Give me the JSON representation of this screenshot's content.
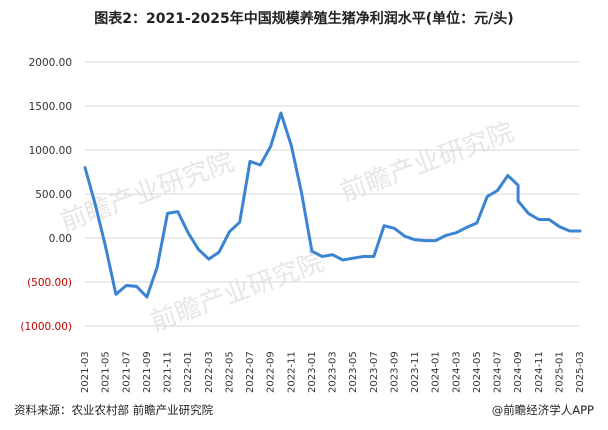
{
  "title": "图表2：2021-2025年中国规模养殖生猪净利润水平(单位：元/头)",
  "footer": {
    "source": "资料来源：农业农村部 前瞻产业研究院",
    "brand": "@前瞻经济学人APP"
  },
  "watermark": "前瞻产业研究院",
  "colors": {
    "line": "#3a84d1",
    "grid": "#d9d9d9",
    "negative_label": "#c00000"
  },
  "chart_data": {
    "type": "line",
    "title": "图表2：2021-2025年中国规模养殖生猪净利润水平(单位：元/头)",
    "xlabel": "",
    "ylabel": "",
    "ylim": [
      -1000,
      2000
    ],
    "yticks": [
      2000,
      1500,
      1000,
      500,
      0,
      -500,
      -1000
    ],
    "ytick_labels": [
      "2000.00",
      "1500.00",
      "1000.00",
      "500.00",
      "0.00",
      "(500.00)",
      "(1000.00)"
    ],
    "xtick_labels": [
      "2021-03",
      "2021-05",
      "2021-07",
      "2021-09",
      "2021-11",
      "2022-01",
      "2022-03",
      "2022-05",
      "2022-07",
      "2022-09",
      "2022-11",
      "2023-01",
      "2023-03",
      "2023-05",
      "2023-07",
      "2023-09",
      "2023-11",
      "2024-01",
      "2024-03",
      "2024-05",
      "2024-07",
      "2024-09",
      "2024-11",
      "2025-01",
      "2025-03"
    ],
    "grid": true,
    "series": [
      {
        "points": [
          [
            "2021-03",
            800
          ],
          [
            "2021-04",
            380
          ],
          [
            "2021-05",
            -100
          ],
          [
            "2021-06",
            -640
          ],
          [
            "2021-07",
            -540
          ],
          [
            "2021-08",
            -550
          ],
          [
            "2021-09",
            -670
          ],
          [
            "2021-10",
            -330
          ],
          [
            "2021-11",
            280
          ],
          [
            "2021-12",
            300
          ],
          [
            "2022-01",
            60
          ],
          [
            "2022-02",
            -130
          ],
          [
            "2022-03",
            -240
          ],
          [
            "2022-04",
            -160
          ],
          [
            "2022-05",
            70
          ],
          [
            "2022-06",
            180
          ],
          [
            "2022-07",
            870
          ],
          [
            "2022-08",
            830
          ],
          [
            "2022-09",
            1040
          ],
          [
            "2022-10",
            1420
          ],
          [
            "2022-11",
            1050
          ],
          [
            "2022-12",
            510
          ],
          [
            "2023-01",
            -150
          ],
          [
            "2023-02",
            -210
          ],
          [
            "2023-03",
            -190
          ],
          [
            "2023-04",
            -250
          ],
          [
            "2023-05",
            -230
          ],
          [
            "2023-06",
            -210
          ],
          [
            "2023-07",
            -210
          ],
          [
            "2023-08",
            140
          ],
          [
            "2023-09",
            110
          ],
          [
            "2023-10",
            20
          ],
          [
            "2023-11",
            -20
          ],
          [
            "2023-12",
            -30
          ],
          [
            "2024-01",
            -30
          ],
          [
            "2024-02",
            30
          ],
          [
            "2024-03",
            60
          ],
          [
            "2024-04",
            120
          ],
          [
            "2024-05",
            170
          ],
          [
            "2024-06",
            470
          ],
          [
            "2024-07",
            540
          ],
          [
            "2024-08",
            710
          ],
          [
            "2024-09",
            600
          ],
          [
            "2024-09",
            420
          ],
          [
            "2024-10",
            280
          ],
          [
            "2024-11",
            210
          ],
          [
            "2024-12",
            210
          ],
          [
            "2025-01",
            130
          ],
          [
            "2025-02",
            80
          ],
          [
            "2025-03",
            80
          ]
        ]
      }
    ]
  }
}
